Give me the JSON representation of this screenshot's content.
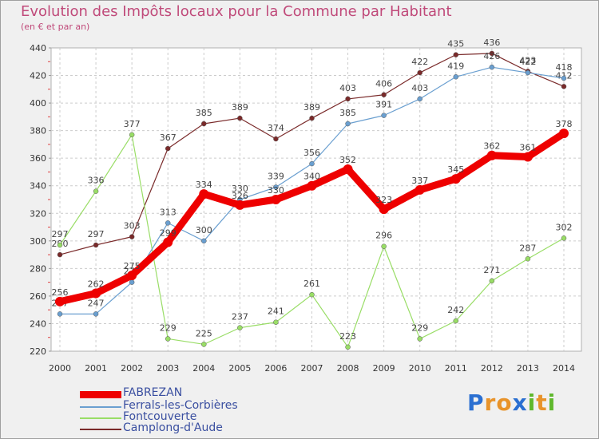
{
  "header": {
    "title": "Evolution des Impôts locaux pour la Commune par Habitant",
    "subtitle": "(en € et par an)"
  },
  "logo": {
    "text": "Proxiti",
    "letters": [
      {
        "ch": "P",
        "color": "#2a6fd1"
      },
      {
        "ch": "r",
        "color": "#e8932a"
      },
      {
        "ch": "o",
        "color": "#e8932a"
      },
      {
        "ch": "x",
        "color": "#2a6fd1"
      },
      {
        "ch": "i",
        "color": "#5fb82d"
      },
      {
        "ch": "t",
        "color": "#e8932a"
      },
      {
        "ch": "i",
        "color": "#5fb82d"
      }
    ]
  },
  "chart_data": {
    "type": "line",
    "title": "Evolution des Impôts locaux pour la Commune par Habitant",
    "subtitle": "(en € et par an)",
    "x": [
      2000,
      2001,
      2002,
      2003,
      2004,
      2005,
      2006,
      2007,
      2008,
      2009,
      2010,
      2011,
      2012,
      2013,
      2014
    ],
    "ylim": [
      220,
      440
    ],
    "yticks": [
      220,
      240,
      260,
      280,
      300,
      320,
      340,
      360,
      380,
      400,
      420,
      440
    ],
    "grid": true,
    "legend_position": "bottom-left",
    "series": [
      {
        "name": "FABREZAN",
        "color": "#ee0000",
        "values": [
          256,
          262,
          275,
          299,
          334,
          326,
          330,
          340,
          352,
          323,
          337,
          345,
          362,
          361,
          378
        ]
      },
      {
        "name": "Ferrals-les-Corbières",
        "color": "#6a9fd0",
        "values": [
          247,
          247,
          270,
          313,
          300,
          330,
          339,
          356,
          385,
          391,
          403,
          419,
          426,
          422,
          418
        ]
      },
      {
        "name": "Fontcouverte",
        "color": "#99dd66",
        "values": [
          297,
          336,
          377,
          229,
          225,
          237,
          241,
          261,
          223,
          296,
          229,
          242,
          271,
          287,
          302
        ]
      },
      {
        "name": "Camplong-d'Aude",
        "color": "#7a2a2a",
        "values": [
          290,
          297,
          303,
          367,
          385,
          389,
          374,
          389,
          403,
          406,
          422,
          435,
          436,
          423,
          412
        ]
      }
    ]
  }
}
